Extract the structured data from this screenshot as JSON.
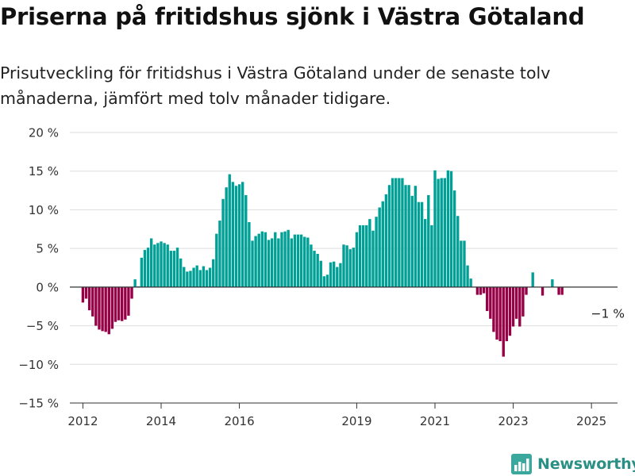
{
  "header": {
    "title": "Priserna på fritidshus sjönk i Västra Götaland",
    "subtitle": "Prisutveckling för fritidshus i Västra Götaland under de senaste tolv månaderna, jämfört med tolv månader tidigare."
  },
  "chart_data": {
    "type": "bar",
    "y_unit": "%",
    "ylim": [
      -15,
      20
    ],
    "y_ticks": [
      -15,
      -10,
      -5,
      0,
      5,
      10,
      15,
      20
    ],
    "y_tick_labels": [
      "−15 %",
      "−10 %",
      "−5 %",
      "0 %",
      "5 %",
      "10 %",
      "15 %",
      "20 %"
    ],
    "x_ticks": [
      2012,
      2014,
      2016,
      2019,
      2021,
      2023,
      2025
    ],
    "x_range": [
      "2011-09",
      "2025-09"
    ],
    "grid": true,
    "colors": {
      "positive": "#00a096",
      "negative": "#960046",
      "zero_line": "#333333",
      "grid": "#dddddd"
    },
    "start_month": "2012-01",
    "values": [
      -2,
      -1.5,
      -3,
      -3.8,
      -5,
      -5.5,
      -5.7,
      -5.8,
      -6.1,
      -5.4,
      -4.5,
      -4.3,
      -4.4,
      -4.2,
      -3.7,
      -1.5,
      1,
      0.1,
      3.8,
      4.8,
      5.1,
      6.3,
      5.5,
      5.7,
      5.9,
      5.7,
      5.5,
      4.7,
      4.7,
      5.1,
      3.7,
      2.6,
      2,
      2.1,
      2.5,
      2.8,
      2.2,
      2.7,
      2.2,
      2.5,
      3.6,
      6.9,
      8.6,
      11.4,
      12.9,
      14.6,
      13.6,
      13.1,
      13.3,
      13.6,
      11.9,
      8.4,
      6,
      6.6,
      6.9,
      7.2,
      7.1,
      6.1,
      6.3,
      7.1,
      6.3,
      7.1,
      7.2,
      7.4,
      6.3,
      6.8,
      6.8,
      6.8,
      6.5,
      6.4,
      5.5,
      4.7,
      4.3,
      3.4,
      1.4,
      1.6,
      3.2,
      3.3,
      2.6,
      3.1,
      5.5,
      5.4,
      4.9,
      5.1,
      7.1,
      8,
      8,
      8,
      8.8,
      7.3,
      9.1,
      10.3,
      11.1,
      12,
      13.2,
      14.1,
      14.1,
      14.1,
      14.1,
      13.2,
      13.2,
      11.8,
      13.1,
      11,
      11,
      8.8,
      11.9,
      8,
      15.1,
      14,
      14.1,
      14.1,
      15.1,
      15,
      12.5,
      9.2,
      6,
      6,
      2.8,
      1.1,
      0,
      -1,
      -1,
      -0.8,
      -3.1,
      -4.1,
      -5.8,
      -6.8,
      -7,
      -9,
      -7,
      -6.3,
      -5.1,
      -4.1,
      -5.1,
      -3.8,
      -1,
      0,
      1.9,
      0,
      0,
      -1.1,
      0,
      0,
      1,
      0,
      -1,
      -1
    ],
    "annotations": [
      {
        "text": "−1 %",
        "x": "2025-04",
        "y": -1
      }
    ]
  },
  "logo": {
    "text": "Newsworthy",
    "icon": "newsworthy-logo-icon",
    "color": "#2a8f84"
  }
}
